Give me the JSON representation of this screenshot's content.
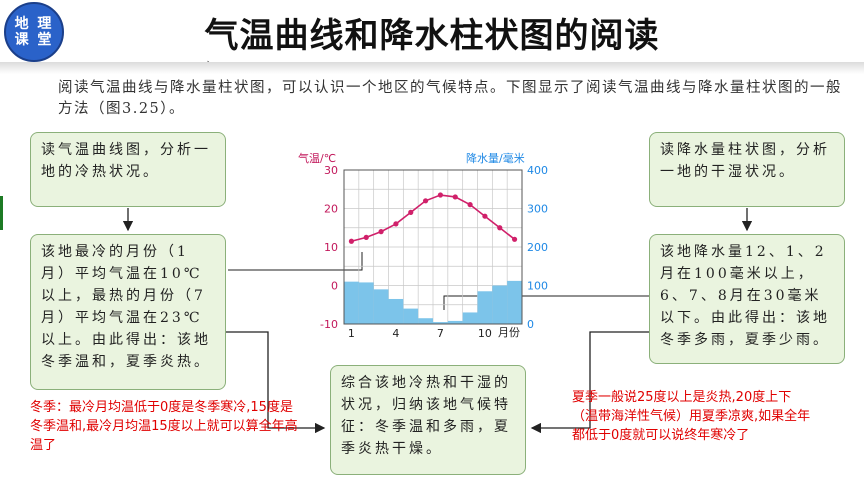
{
  "header": {
    "logo_line1": "地 理",
    "logo_line2": "课 堂",
    "title": "气温曲线和降水柱状图的阅读"
  },
  "intro": {
    "text": "阅读气温曲线与降水量柱状图，可以认识一个地区的气候特点。下图显示了阅读气温曲线与降水量柱状图的一般方法（图3.25）。"
  },
  "boxes": {
    "top_left": "读气温曲线图，分析一地的冷热状况。",
    "mid_left": "该地最冷的月份（1月）平均气温在10℃以上，最热的月份（7月）平均气温在23℃以上。由此得出：该地冬季温和，夏季炎热。",
    "top_right": "读降水量柱状图，分析一地的干湿状况。",
    "mid_right": "该地降水量12、1、2月在100毫米以上，6、7、8月在30毫米以下。由此得出：该地冬季多雨，夏季少雨。",
    "bottom_center": "综合该地冷热和干湿的状况，归纳该地气候特征：冬季温和多雨，夏季炎热干燥。"
  },
  "notes": {
    "left": "冬季：最冷月均温低于0度是冬季寒冷,15度是冬季温和,最冷月均温15度以上就可以算全年高温了",
    "right": "夏季一般说25度以上是炎热,20度上下（温带海洋性气候）用夏季凉爽,如果全年都低于0度就可以说终年寒冷了"
  },
  "colors": {
    "box_fill": "#eaf4df",
    "box_border": "#8bb07a",
    "temp_line": "#d0206a",
    "precip_bar": "#7cc4ea",
    "note_text": "#e00000",
    "logo_blue": "#2a62c9"
  },
  "chart_data": {
    "type": "bar+line",
    "ylabel_left": "气温/℃",
    "ylabel_right": "降水量/毫米",
    "xlabel_unit": "月份",
    "x_ticks": [
      "1",
      "4",
      "7",
      "10"
    ],
    "y_left_ticks": [
      "30",
      "20",
      "10",
      "0",
      "-10"
    ],
    "y_right_ticks": [
      "400",
      "300",
      "200",
      "100",
      "0"
    ],
    "ylim_left": [
      -10,
      30
    ],
    "ylim_right": [
      0,
      400
    ],
    "months": [
      1,
      2,
      3,
      4,
      5,
      6,
      7,
      8,
      9,
      10,
      11,
      12
    ],
    "temperature": [
      11.5,
      12.5,
      14,
      16,
      19,
      22,
      23.5,
      23,
      21,
      18,
      15,
      12
    ],
    "precipitation": [
      110,
      108,
      90,
      65,
      40,
      15,
      5,
      8,
      30,
      85,
      100,
      112
    ]
  }
}
